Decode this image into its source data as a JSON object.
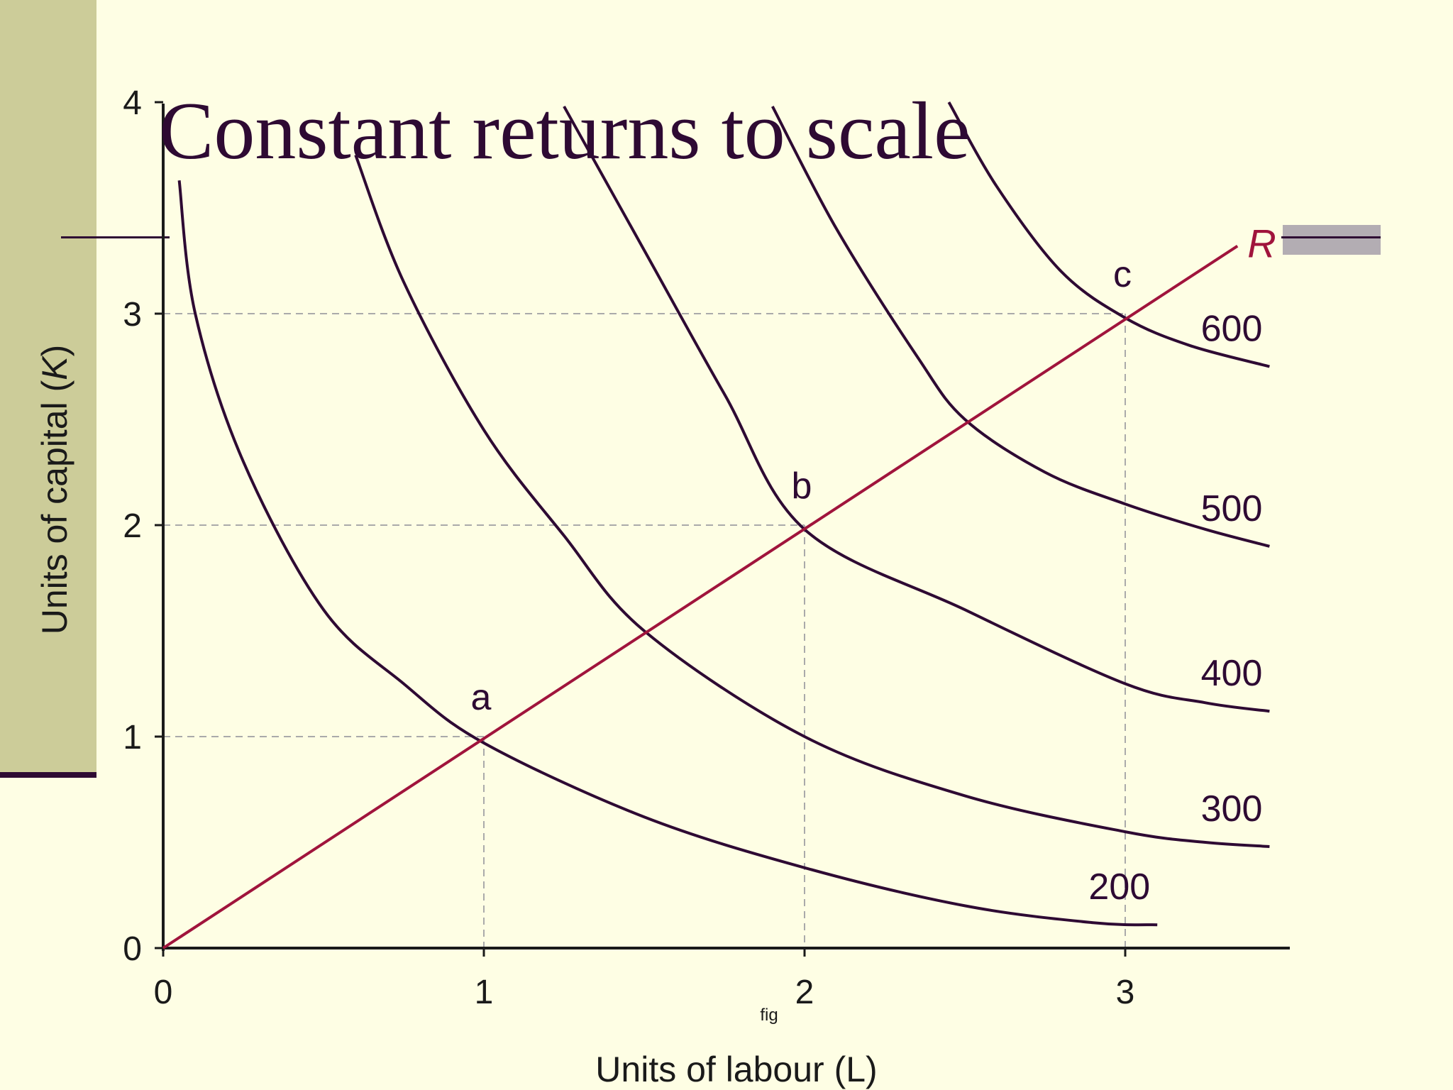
{
  "slide": {
    "title": "Constant returns to scale",
    "footnote": "fig"
  },
  "colors": {
    "background": "#fefee4",
    "side_band": "#cccc99",
    "isoquant": "#2e0a33",
    "ray": "#a0143c",
    "guide": "#aaaaaa",
    "axis": "#1a1a1a"
  },
  "chart_data": {
    "type": "line",
    "xlabel": "Units of labour (L)",
    "ylabel_prefix": "Units of capital (",
    "ylabel_var": "K",
    "ylabel_suffix": ")",
    "xlim": [
      0,
      3.5
    ],
    "ylim": [
      0,
      4
    ],
    "x_ticks": [
      {
        "value": 0,
        "label": "0"
      },
      {
        "value": 1,
        "label": "1"
      },
      {
        "value": 2,
        "label": "2"
      },
      {
        "value": 3,
        "label": "3"
      }
    ],
    "y_ticks": [
      {
        "value": 0,
        "label": "0"
      },
      {
        "value": 1,
        "label": "1"
      },
      {
        "value": 2,
        "label": "2"
      },
      {
        "value": 3,
        "label": "3"
      },
      {
        "value": 4,
        "label": "4"
      }
    ],
    "isoquants": [
      {
        "label": "200",
        "points": [
          [
            0.05,
            3.63
          ],
          [
            0.1,
            3.0
          ],
          [
            0.25,
            2.3
          ],
          [
            0.5,
            1.6
          ],
          [
            0.75,
            1.25
          ],
          [
            1.0,
            0.97
          ],
          [
            1.5,
            0.62
          ],
          [
            2.0,
            0.38
          ],
          [
            2.5,
            0.2
          ],
          [
            2.9,
            0.12
          ],
          [
            3.1,
            0.11
          ]
        ]
      },
      {
        "label": "300",
        "points": [
          [
            0.6,
            3.75
          ],
          [
            0.75,
            3.15
          ],
          [
            1.0,
            2.45
          ],
          [
            1.25,
            1.95
          ],
          [
            1.5,
            1.5
          ],
          [
            2.0,
            1.0
          ],
          [
            2.5,
            0.72
          ],
          [
            3.0,
            0.55
          ],
          [
            3.25,
            0.5
          ],
          [
            3.45,
            0.48
          ]
        ]
      },
      {
        "label": "400",
        "points": [
          [
            1.25,
            3.98
          ],
          [
            1.5,
            3.3
          ],
          [
            1.75,
            2.62
          ],
          [
            2.0,
            1.98
          ],
          [
            2.5,
            1.6
          ],
          [
            3.0,
            1.25
          ],
          [
            3.25,
            1.16
          ],
          [
            3.45,
            1.12
          ]
        ]
      },
      {
        "label": "500",
        "points": [
          [
            1.9,
            3.98
          ],
          [
            2.1,
            3.4
          ],
          [
            2.35,
            2.8
          ],
          [
            2.5,
            2.5
          ],
          [
            2.75,
            2.25
          ],
          [
            3.0,
            2.1
          ],
          [
            3.25,
            1.98
          ],
          [
            3.45,
            1.9
          ]
        ]
      },
      {
        "label": "600",
        "points": [
          [
            2.45,
            4.0
          ],
          [
            2.6,
            3.6
          ],
          [
            2.8,
            3.2
          ],
          [
            3.0,
            2.98
          ],
          [
            3.2,
            2.85
          ],
          [
            3.45,
            2.75
          ]
        ]
      }
    ],
    "ray": {
      "label": "R",
      "points": [
        [
          0,
          0
        ],
        [
          3.35,
          3.32
        ]
      ]
    },
    "points": [
      {
        "label": "a",
        "x": 1,
        "y": 1
      },
      {
        "label": "b",
        "x": 2,
        "y": 2
      },
      {
        "label": "c",
        "x": 3,
        "y": 3
      }
    ]
  }
}
